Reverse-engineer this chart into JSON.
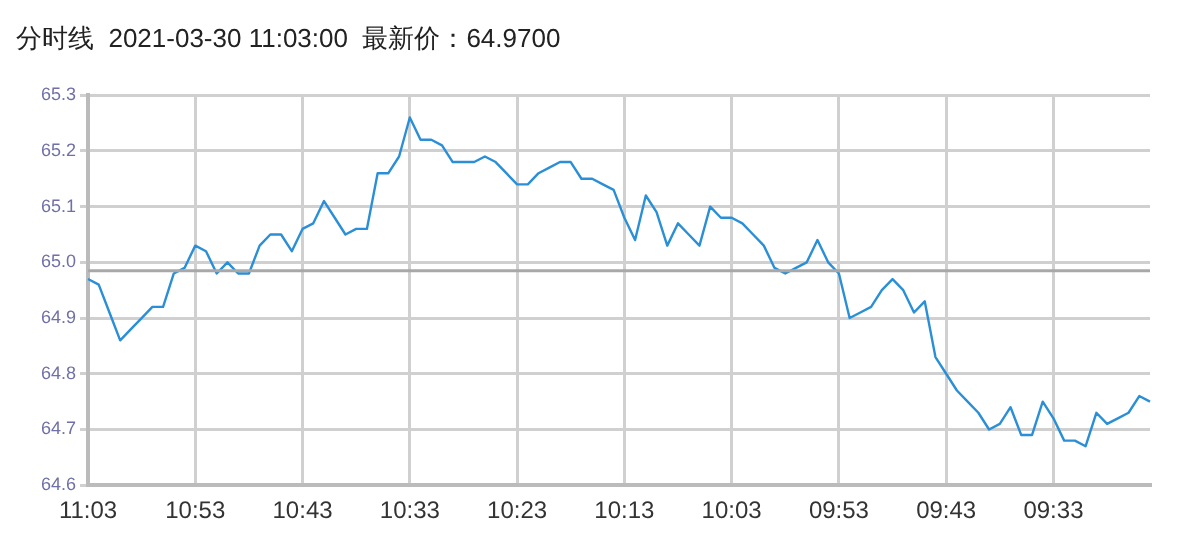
{
  "chart_data": {
    "type": "line",
    "title": "分时线  2021-03-30 11:03:00  最新价：64.9700",
    "categories": [
      "11:03",
      null,
      null,
      null,
      null,
      null,
      null,
      null,
      null,
      null,
      "10:53",
      null,
      null,
      null,
      null,
      null,
      null,
      null,
      null,
      null,
      "10:43",
      null,
      null,
      null,
      null,
      null,
      null,
      null,
      null,
      null,
      "10:33",
      null,
      null,
      null,
      null,
      null,
      null,
      null,
      null,
      null,
      "10:23",
      null,
      null,
      null,
      null,
      null,
      null,
      null,
      null,
      null,
      "10:13",
      null,
      null,
      null,
      null,
      null,
      null,
      null,
      null,
      null,
      "10:03",
      null,
      null,
      null,
      null,
      null,
      null,
      null,
      null,
      null,
      "09:53",
      null,
      null,
      null,
      null,
      null,
      null,
      null,
      null,
      null,
      "09:43",
      null,
      null,
      null,
      null,
      null,
      null,
      null,
      null,
      null,
      "09:33",
      null,
      null,
      null,
      null,
      null,
      null,
      null,
      null,
      null
    ],
    "series": [
      {
        "color": "#2a8fd6",
        "values": [
          64.97,
          64.96,
          64.91,
          64.86,
          64.88,
          64.9,
          64.92,
          64.92,
          64.98,
          64.99,
          65.03,
          65.02,
          64.98,
          65.0,
          64.98,
          64.98,
          65.03,
          65.05,
          65.05,
          65.02,
          65.06,
          65.07,
          65.11,
          65.08,
          65.05,
          65.06,
          65.06,
          65.16,
          65.16,
          65.19,
          65.26,
          65.22,
          65.22,
          65.21,
          65.18,
          65.18,
          65.18,
          65.19,
          65.18,
          65.16,
          65.14,
          65.14,
          65.16,
          65.17,
          65.18,
          65.18,
          65.15,
          65.15,
          65.14,
          65.13,
          65.08,
          65.04,
          65.12,
          65.09,
          65.03,
          65.07,
          65.05,
          65.03,
          65.1,
          65.08,
          65.08,
          65.07,
          65.05,
          65.03,
          64.99,
          64.98,
          64.99,
          65.0,
          65.04,
          65.0,
          64.98,
          64.9,
          64.91,
          64.92,
          64.95,
          64.97,
          64.95,
          64.91,
          64.93,
          64.83,
          64.8,
          64.77,
          64.75,
          64.73,
          64.7,
          64.71,
          64.74,
          64.69,
          64.69,
          64.75,
          64.72,
          64.68,
          64.68,
          64.67,
          64.73,
          64.71,
          64.72,
          64.73,
          64.76,
          64.75
        ]
      }
    ],
    "ylim": [
      64.6,
      65.3
    ],
    "yticks": [
      {
        "value": 64.6,
        "label": "64.6"
      },
      {
        "value": 64.7,
        "label": "64.7"
      },
      {
        "value": 64.8,
        "label": "64.8"
      },
      {
        "value": 64.9,
        "label": "64.9"
      },
      {
        "value": 65.0,
        "label": "65.0"
      },
      {
        "value": 65.1,
        "label": "65.1"
      },
      {
        "value": 65.2,
        "label": "65.2"
      },
      {
        "value": 65.3,
        "label": "65.3"
      }
    ],
    "ref_lines": [
      {
        "axis": "y",
        "value": 64.985,
        "color": "#a8a8a8"
      }
    ],
    "grid": true,
    "marker": "none",
    "line_style": "solid",
    "legend": false
  }
}
